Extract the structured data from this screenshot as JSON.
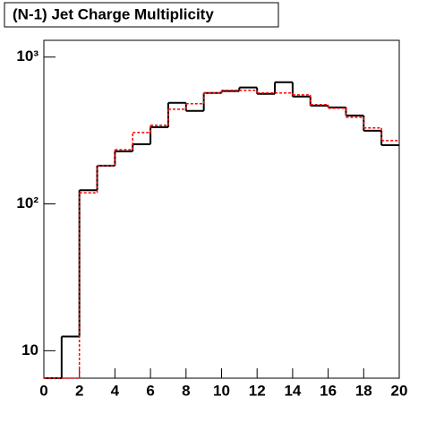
{
  "chart_data": {
    "type": "histogram",
    "title": "(N-1) Jet Charge Multiplicity",
    "bins": [
      0,
      1,
      2,
      3,
      4,
      5,
      6,
      7,
      8,
      9,
      10,
      11,
      12,
      13,
      14,
      15,
      16,
      17,
      18,
      19,
      20
    ],
    "series": [
      {
        "color": "#000000",
        "style": "solid",
        "values": [
          0,
          12.5,
          124,
          182,
          228,
          255,
          333,
          488,
          430,
          569,
          587,
          620,
          561,
          674,
          538,
          467,
          454,
          400,
          315,
          251
        ]
      },
      {
        "color": "#ff0000",
        "style": "dashed",
        "values": [
          0,
          0,
          119,
          182,
          234,
          306,
          343,
          441,
          481,
          569,
          594,
          594,
          569,
          569,
          553,
          474,
          448,
          389,
          329,
          270
        ]
      }
    ],
    "xlim": [
      0,
      20
    ],
    "xticks": [
      0,
      2,
      4,
      6,
      8,
      10,
      12,
      14,
      16,
      18,
      20
    ],
    "ylim": [
      6.5,
      1300
    ],
    "yscale": "log",
    "yticks": [
      10,
      {
        "value": 100,
        "label": "10²"
      },
      {
        "value": 1000,
        "label": "10³"
      }
    ]
  }
}
